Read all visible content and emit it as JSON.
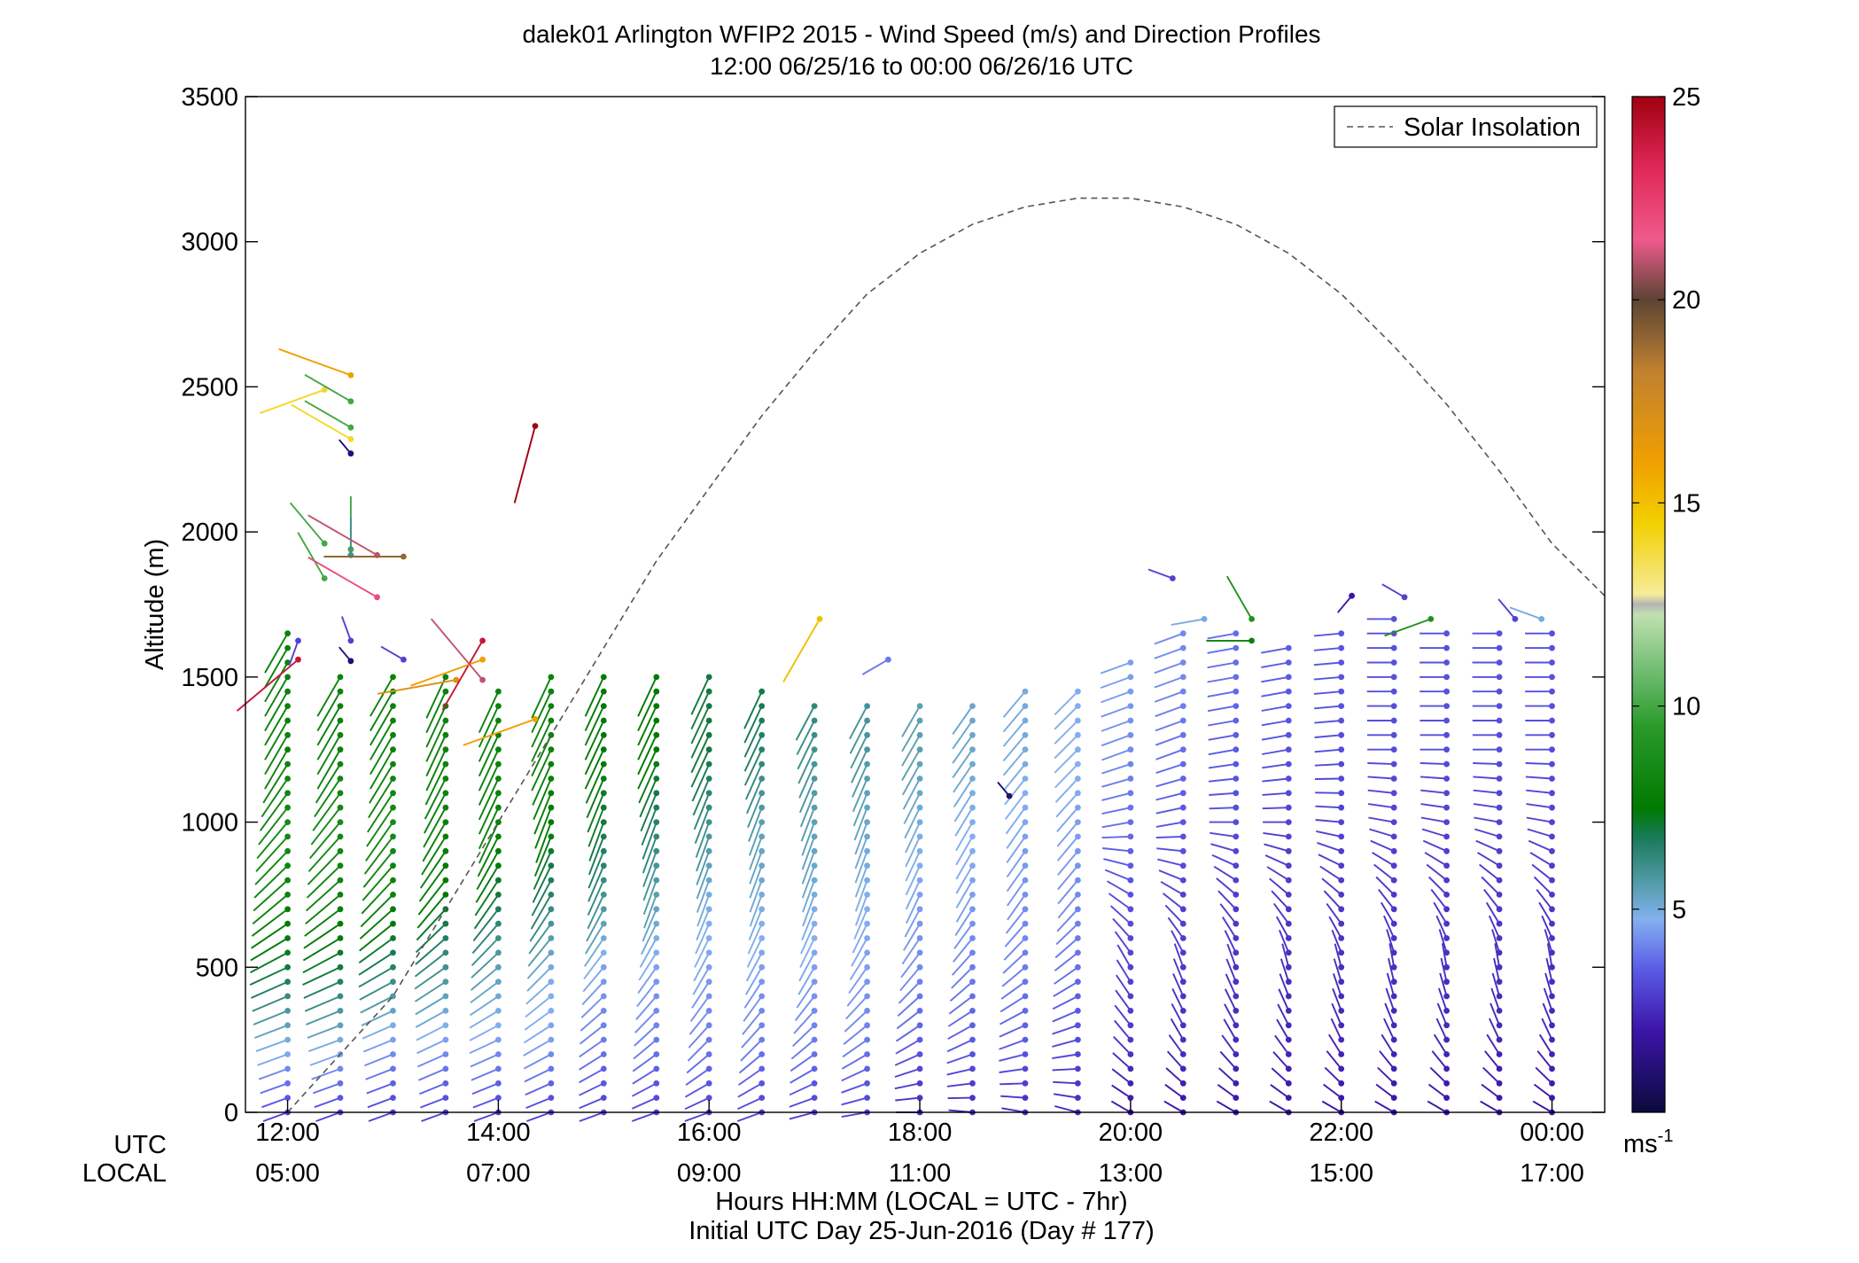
{
  "chart_data": {
    "type": "scatter",
    "title": "dalek01 Arlington WFIP2 2015 - Wind Speed (m/s) and Direction Profiles",
    "subtitle": "12:00 06/25/16 to 00:00 06/26/16  UTC",
    "ylabel": "Altitude (m)",
    "xlabel": "Hours HH:MM  (LOCAL = UTC - 7hr)",
    "xlabel2": "Initial UTC Day 25-Jun-2016 (Day # 177)",
    "ylim": [
      0,
      3500
    ],
    "yticks": [
      "0",
      "500",
      "1000",
      "1500",
      "2000",
      "2500",
      "3000",
      "3500"
    ],
    "xlim_hours_utc": [
      11.6,
      24.5
    ],
    "x_row_label_utc": "UTC",
    "x_row_label_local": "LOCAL",
    "xticks_utc": [
      "12:00",
      "14:00",
      "16:00",
      "18:00",
      "20:00",
      "22:00",
      "00:00"
    ],
    "xticks_local": [
      "05:00",
      "07:00",
      "09:00",
      "11:00",
      "13:00",
      "15:00",
      "17:00"
    ],
    "xtick_hours_utc": [
      12,
      14,
      16,
      18,
      20,
      22,
      24
    ],
    "legend": {
      "label": "Solar Insolation",
      "position": "top-right"
    },
    "colorbar": {
      "range": [
        0,
        25
      ],
      "ticks": [
        "5",
        "10",
        "15",
        "20",
        "25"
      ],
      "unit": "ms",
      "unit_exponent": "-1"
    },
    "solar_insolation": {
      "hours_utc": [
        12.0,
        12.5,
        13.0,
        13.5,
        14.0,
        14.5,
        15.0,
        15.5,
        16.0,
        16.5,
        17.0,
        17.5,
        18.0,
        18.5,
        19.0,
        19.5,
        20.0,
        20.5,
        21.0,
        21.5,
        22.0,
        22.5,
        23.0,
        23.5,
        24.0,
        24.5
      ],
      "altitude_scaled": [
        0,
        200,
        400,
        700,
        1000,
        1300,
        1600,
        1900,
        2150,
        2400,
        2620,
        2820,
        2960,
        3060,
        3120,
        3150,
        3150,
        3120,
        3060,
        2960,
        2820,
        2640,
        2440,
        2210,
        1960,
        1780
      ]
    },
    "wind_profiles": {
      "hours_utc": [
        12.0,
        12.5,
        13.0,
        13.5,
        14.0,
        14.5,
        15.0,
        15.5,
        16.0,
        16.5,
        17.0,
        17.5,
        18.0,
        18.5,
        19.0,
        19.5,
        20.0,
        20.5,
        21.0,
        21.5,
        22.0,
        22.5,
        23.0,
        23.5,
        24.0
      ],
      "altitude_spacing_m": 50,
      "max_altitude_m": [
        1650,
        1500,
        1500,
        1500,
        1480,
        1500,
        1520,
        1520,
        1500,
        1450,
        1420,
        1400,
        1420,
        1430,
        1450,
        1450,
        1550,
        1650,
        1650,
        1600,
        1680,
        1700,
        1650,
        1650,
        1650
      ],
      "speed_profile_ms": [
        [
          3,
          5,
          7,
          8,
          8.5,
          8,
          8
        ],
        [
          3,
          5,
          7,
          8,
          8.5,
          8,
          8
        ],
        [
          3,
          4.5,
          6.5,
          8,
          8.5,
          8,
          8
        ],
        [
          3,
          4.5,
          6,
          7.5,
          8,
          8,
          8
        ],
        [
          3,
          4.5,
          5.5,
          7,
          8,
          8,
          8
        ],
        [
          3,
          4.5,
          5,
          6.5,
          7.5,
          8,
          8
        ],
        [
          3,
          4,
          4.5,
          6,
          7,
          7.5,
          7.5
        ],
        [
          3,
          4,
          4.5,
          5.5,
          6.5,
          7.5,
          7.5
        ],
        [
          3,
          4,
          4.5,
          5,
          6,
          7,
          7
        ],
        [
          3,
          4,
          4.5,
          5,
          5.5,
          6.5,
          7
        ],
        [
          3,
          4,
          4.5,
          5,
          5.5,
          6,
          6.5
        ],
        [
          3,
          4,
          4.5,
          4.8,
          5.2,
          5.8,
          6
        ],
        [
          2.5,
          3.5,
          4.2,
          4.5,
          5,
          5.5,
          5.5
        ],
        [
          2.5,
          3.5,
          4,
          4.5,
          4.8,
          5.2,
          5.2
        ],
        [
          2.5,
          3.5,
          4,
          4.3,
          4.6,
          5,
          5
        ],
        [
          2.5,
          3.2,
          3.8,
          4.2,
          4.5,
          4.8,
          4.8
        ],
        [
          2,
          2.8,
          3,
          3.3,
          3.8,
          4.2,
          4.5
        ],
        [
          2,
          2.6,
          2.8,
          3,
          3.4,
          3.8,
          4.2
        ],
        [
          2,
          2.5,
          2.7,
          2.9,
          3.2,
          3.5,
          3.8
        ],
        [
          2,
          2.4,
          2.6,
          2.8,
          3,
          3.3,
          3.5
        ],
        [
          2,
          2.4,
          2.6,
          2.8,
          3,
          3.2,
          3.4
        ],
        [
          2,
          2.4,
          2.6,
          2.8,
          3,
          3.2,
          3.3
        ],
        [
          2,
          2.4,
          2.6,
          2.8,
          3,
          3.2,
          3.3
        ],
        [
          2,
          2.4,
          2.6,
          2.8,
          3,
          3.2,
          3.3
        ],
        [
          2,
          2.4,
          2.6,
          2.8,
          3,
          3.2,
          3.3
        ]
      ],
      "speed_profile_altitudes_m": [
        0,
        250,
        500,
        750,
        1000,
        1250,
        1500
      ],
      "direction_profile_deg": [
        [
          250,
          250,
          245,
          230,
          220,
          210,
          210
        ],
        [
          250,
          250,
          245,
          230,
          220,
          210,
          210
        ],
        [
          250,
          248,
          240,
          225,
          215,
          210,
          210
        ],
        [
          250,
          245,
          235,
          220,
          210,
          205,
          205
        ],
        [
          250,
          245,
          230,
          215,
          205,
          205,
          205
        ],
        [
          250,
          240,
          225,
          210,
          200,
          205,
          205
        ],
        [
          250,
          235,
          220,
          205,
          200,
          205,
          205
        ],
        [
          250,
          230,
          215,
          200,
          200,
          205,
          205
        ],
        [
          250,
          225,
          210,
          200,
          200,
          205,
          205
        ],
        [
          250,
          225,
          210,
          200,
          200,
          205,
          205
        ],
        [
          255,
          230,
          210,
          200,
          200,
          205,
          210
        ],
        [
          260,
          235,
          215,
          200,
          200,
          205,
          210
        ],
        [
          270,
          240,
          220,
          205,
          205,
          210,
          210
        ],
        [
          275,
          245,
          225,
          210,
          210,
          215,
          215
        ],
        [
          280,
          250,
          230,
          215,
          215,
          220,
          220
        ],
        [
          285,
          255,
          235,
          220,
          220,
          225,
          225
        ],
        [
          300,
          320,
          330,
          300,
          260,
          250,
          250
        ],
        [
          300,
          330,
          340,
          300,
          260,
          250,
          250
        ],
        [
          300,
          330,
          340,
          310,
          270,
          260,
          260
        ],
        [
          300,
          330,
          345,
          310,
          270,
          260,
          260
        ],
        [
          300,
          335,
          345,
          310,
          275,
          265,
          265
        ],
        [
          300,
          335,
          350,
          315,
          280,
          270,
          270
        ],
        [
          300,
          335,
          350,
          315,
          280,
          270,
          270
        ],
        [
          300,
          335,
          350,
          315,
          280,
          270,
          270
        ],
        [
          300,
          335,
          350,
          315,
          280,
          270,
          270
        ]
      ],
      "sparse_upper_barbs": [
        {
          "hour_utc": 12.1,
          "altitude_m": 1560,
          "speed_ms": 24,
          "direction_deg": 230
        },
        {
          "hour_utc": 12.1,
          "altitude_m": 1625,
          "speed_ms": 3,
          "direction_deg": 200
        },
        {
          "hour_utc": 12.35,
          "altitude_m": 2490,
          "speed_ms": 14,
          "direction_deg": 250
        },
        {
          "hour_utc": 12.35,
          "altitude_m": 1960,
          "speed_ms": 10,
          "direction_deg": 320
        },
        {
          "hour_utc": 12.35,
          "altitude_m": 1840,
          "speed_ms": 10,
          "direction_deg": 330
        },
        {
          "hour_utc": 12.6,
          "altitude_m": 2540,
          "speed_ms": 16,
          "direction_deg": 290
        },
        {
          "hour_utc": 12.6,
          "altitude_m": 2450,
          "speed_ms": 10,
          "direction_deg": 300
        },
        {
          "hour_utc": 12.6,
          "altitude_m": 2360,
          "speed_ms": 10,
          "direction_deg": 300
        },
        {
          "hour_utc": 12.6,
          "altitude_m": 2320,
          "speed_ms": 14,
          "direction_deg": 300
        },
        {
          "hour_utc": 12.6,
          "altitude_m": 2270,
          "speed_ms": 1,
          "direction_deg": 320
        },
        {
          "hour_utc": 12.6,
          "altitude_m": 1940,
          "speed_ms": 10,
          "direction_deg": 0
        },
        {
          "hour_utc": 12.6,
          "altitude_m": 1920,
          "speed_ms": 6,
          "direction_deg": 0
        },
        {
          "hour_utc": 12.85,
          "altitude_m": 1920,
          "speed_ms": 21,
          "direction_deg": 300
        },
        {
          "hour_utc": 13.1,
          "altitude_m": 1915,
          "speed_ms": 19,
          "direction_deg": 270
        },
        {
          "hour_utc": 12.85,
          "altitude_m": 1775,
          "speed_ms": 22,
          "direction_deg": 300
        },
        {
          "hour_utc": 12.6,
          "altitude_m": 1625,
          "speed_ms": 3,
          "direction_deg": 340
        },
        {
          "hour_utc": 12.6,
          "altitude_m": 1555,
          "speed_ms": 1,
          "direction_deg": 320
        },
        {
          "hour_utc": 13.1,
          "altitude_m": 1560,
          "speed_ms": 3,
          "direction_deg": 300
        },
        {
          "hour_utc": 13.6,
          "altitude_m": 1490,
          "speed_ms": 17,
          "direction_deg": 260
        },
        {
          "hour_utc": 13.85,
          "altitude_m": 1625,
          "speed_ms": 24,
          "direction_deg": 210
        },
        {
          "hour_utc": 13.85,
          "altitude_m": 1560,
          "speed_ms": 16,
          "direction_deg": 250
        },
        {
          "hour_utc": 13.85,
          "altitude_m": 1490,
          "speed_ms": 21,
          "direction_deg": 320
        },
        {
          "hour_utc": 14.35,
          "altitude_m": 2365,
          "speed_ms": 25,
          "direction_deg": 195
        },
        {
          "hour_utc": 14.35,
          "altitude_m": 1355,
          "speed_ms": 16,
          "direction_deg": 250
        },
        {
          "hour_utc": 17.05,
          "altitude_m": 1700,
          "speed_ms": 15,
          "direction_deg": 210
        },
        {
          "hour_utc": 17.7,
          "altitude_m": 1560,
          "speed_ms": 4,
          "direction_deg": 240
        },
        {
          "hour_utc": 20.4,
          "altitude_m": 1840,
          "speed_ms": 3,
          "direction_deg": 290
        },
        {
          "hour_utc": 20.7,
          "altitude_m": 1700,
          "speed_ms": 5,
          "direction_deg": 260
        },
        {
          "hour_utc": 21.15,
          "altitude_m": 1700,
          "speed_ms": 9,
          "direction_deg": 330
        },
        {
          "hour_utc": 21.15,
          "altitude_m": 1625,
          "speed_ms": 8,
          "direction_deg": 270
        },
        {
          "hour_utc": 22.1,
          "altitude_m": 1780,
          "speed_ms": 2,
          "direction_deg": 220
        },
        {
          "hour_utc": 22.6,
          "altitude_m": 1775,
          "speed_ms": 3,
          "direction_deg": 300
        },
        {
          "hour_utc": 22.85,
          "altitude_m": 1700,
          "speed_ms": 9,
          "direction_deg": 250
        },
        {
          "hour_utc": 23.65,
          "altitude_m": 1700,
          "speed_ms": 3,
          "direction_deg": 320
        },
        {
          "hour_utc": 23.9,
          "altitude_m": 1700,
          "speed_ms": 5,
          "direction_deg": 290
        },
        {
          "hour_utc": 18.85,
          "altitude_m": 1090,
          "speed_ms": 1,
          "direction_deg": 320
        }
      ]
    }
  }
}
